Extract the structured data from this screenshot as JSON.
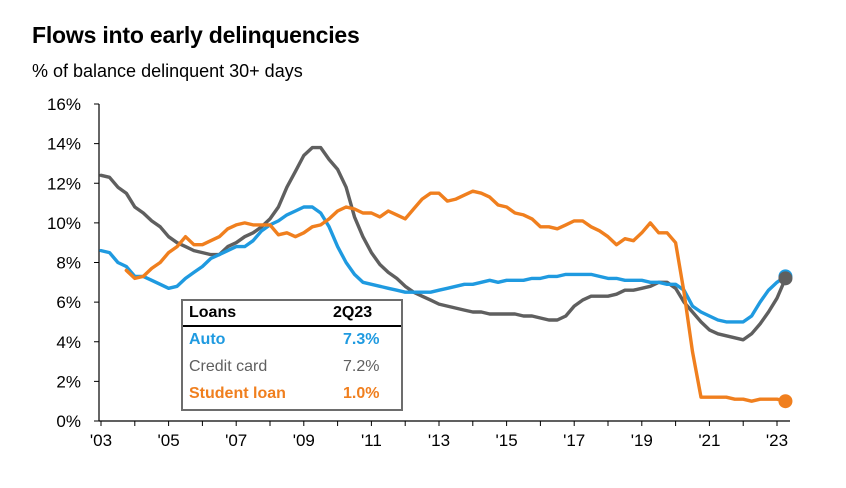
{
  "chart_data": {
    "type": "line",
    "title": "Flows into early delinquencies",
    "subtitle": "% of balance delinquent 30+ days",
    "ylim": [
      0,
      16
    ],
    "xlim": [
      2003.0,
      2023.6
    ],
    "yticks": [
      "0%",
      "2%",
      "4%",
      "6%",
      "8%",
      "10%",
      "12%",
      "14%",
      "16%"
    ],
    "xticks": [
      {
        "x": 2003,
        "label": "'03"
      },
      {
        "x": 2005,
        "label": "'05"
      },
      {
        "x": 2007,
        "label": "'07"
      },
      {
        "x": 2009,
        "label": "'09"
      },
      {
        "x": 2011,
        "label": "'11"
      },
      {
        "x": 2013,
        "label": "'13"
      },
      {
        "x": 2015,
        "label": "'15"
      },
      {
        "x": 2017,
        "label": "'17"
      },
      {
        "x": 2019,
        "label": "'19"
      },
      {
        "x": 2021,
        "label": "'21"
      },
      {
        "x": 2023,
        "label": "'23"
      }
    ],
    "grid": false,
    "series": [
      {
        "name": "Auto",
        "color": "#1f9ae0",
        "points": [
          [
            2003.0,
            8.6
          ],
          [
            2003.25,
            8.5
          ],
          [
            2003.5,
            8.0
          ],
          [
            2003.75,
            7.8
          ],
          [
            2004.0,
            7.3
          ],
          [
            2004.25,
            7.3
          ],
          [
            2004.5,
            7.1
          ],
          [
            2004.75,
            6.9
          ],
          [
            2005.0,
            6.7
          ],
          [
            2005.25,
            6.8
          ],
          [
            2005.5,
            7.2
          ],
          [
            2005.75,
            7.5
          ],
          [
            2006.0,
            7.8
          ],
          [
            2006.25,
            8.2
          ],
          [
            2006.5,
            8.4
          ],
          [
            2006.75,
            8.6
          ],
          [
            2007.0,
            8.8
          ],
          [
            2007.25,
            8.8
          ],
          [
            2007.5,
            9.1
          ],
          [
            2007.75,
            9.6
          ],
          [
            2008.0,
            9.9
          ],
          [
            2008.25,
            10.1
          ],
          [
            2008.5,
            10.4
          ],
          [
            2008.75,
            10.6
          ],
          [
            2009.0,
            10.8
          ],
          [
            2009.25,
            10.8
          ],
          [
            2009.5,
            10.5
          ],
          [
            2009.75,
            9.8
          ],
          [
            2010.0,
            8.8
          ],
          [
            2010.25,
            8.0
          ],
          [
            2010.5,
            7.4
          ],
          [
            2010.75,
            7.0
          ],
          [
            2011.0,
            6.9
          ],
          [
            2011.25,
            6.8
          ],
          [
            2011.5,
            6.7
          ],
          [
            2011.75,
            6.6
          ],
          [
            2012.0,
            6.5
          ],
          [
            2012.25,
            6.5
          ],
          [
            2012.5,
            6.5
          ],
          [
            2012.75,
            6.5
          ],
          [
            2013.0,
            6.6
          ],
          [
            2013.25,
            6.7
          ],
          [
            2013.5,
            6.8
          ],
          [
            2013.75,
            6.9
          ],
          [
            2014.0,
            6.9
          ],
          [
            2014.25,
            7.0
          ],
          [
            2014.5,
            7.1
          ],
          [
            2014.75,
            7.0
          ],
          [
            2015.0,
            7.1
          ],
          [
            2015.25,
            7.1
          ],
          [
            2015.5,
            7.1
          ],
          [
            2015.75,
            7.2
          ],
          [
            2016.0,
            7.2
          ],
          [
            2016.25,
            7.3
          ],
          [
            2016.5,
            7.3
          ],
          [
            2016.75,
            7.4
          ],
          [
            2017.0,
            7.4
          ],
          [
            2017.25,
            7.4
          ],
          [
            2017.5,
            7.4
          ],
          [
            2017.75,
            7.3
          ],
          [
            2018.0,
            7.2
          ],
          [
            2018.25,
            7.2
          ],
          [
            2018.5,
            7.1
          ],
          [
            2018.75,
            7.1
          ],
          [
            2019.0,
            7.1
          ],
          [
            2019.25,
            7.0
          ],
          [
            2019.5,
            7.0
          ],
          [
            2019.75,
            6.9
          ],
          [
            2020.0,
            6.9
          ],
          [
            2020.25,
            6.6
          ],
          [
            2020.5,
            5.8
          ],
          [
            2020.75,
            5.5
          ],
          [
            2021.0,
            5.3
          ],
          [
            2021.25,
            5.1
          ],
          [
            2021.5,
            5.0
          ],
          [
            2021.75,
            5.0
          ],
          [
            2022.0,
            5.0
          ],
          [
            2022.25,
            5.3
          ],
          [
            2022.5,
            6.0
          ],
          [
            2022.75,
            6.6
          ],
          [
            2023.0,
            7.0
          ],
          [
            2023.25,
            7.3
          ]
        ]
      },
      {
        "name": "Credit card",
        "color": "#5f5f5f",
        "points": [
          [
            2003.0,
            12.4
          ],
          [
            2003.25,
            12.3
          ],
          [
            2003.5,
            11.8
          ],
          [
            2003.75,
            11.5
          ],
          [
            2004.0,
            10.8
          ],
          [
            2004.25,
            10.5
          ],
          [
            2004.5,
            10.1
          ],
          [
            2004.75,
            9.8
          ],
          [
            2005.0,
            9.3
          ],
          [
            2005.25,
            9.0
          ],
          [
            2005.5,
            8.8
          ],
          [
            2005.75,
            8.6
          ],
          [
            2006.0,
            8.5
          ],
          [
            2006.25,
            8.4
          ],
          [
            2006.5,
            8.4
          ],
          [
            2006.75,
            8.8
          ],
          [
            2007.0,
            9.0
          ],
          [
            2007.25,
            9.3
          ],
          [
            2007.5,
            9.5
          ],
          [
            2007.75,
            9.8
          ],
          [
            2008.0,
            10.2
          ],
          [
            2008.25,
            10.8
          ],
          [
            2008.5,
            11.8
          ],
          [
            2008.75,
            12.6
          ],
          [
            2009.0,
            13.4
          ],
          [
            2009.25,
            13.8
          ],
          [
            2009.5,
            13.8
          ],
          [
            2009.75,
            13.2
          ],
          [
            2010.0,
            12.7
          ],
          [
            2010.25,
            11.8
          ],
          [
            2010.5,
            10.3
          ],
          [
            2010.75,
            9.3
          ],
          [
            2011.0,
            8.5
          ],
          [
            2011.25,
            7.9
          ],
          [
            2011.5,
            7.5
          ],
          [
            2011.75,
            7.2
          ],
          [
            2012.0,
            6.8
          ],
          [
            2012.25,
            6.5
          ],
          [
            2012.5,
            6.3
          ],
          [
            2012.75,
            6.1
          ],
          [
            2013.0,
            5.9
          ],
          [
            2013.25,
            5.8
          ],
          [
            2013.5,
            5.7
          ],
          [
            2013.75,
            5.6
          ],
          [
            2014.0,
            5.5
          ],
          [
            2014.25,
            5.5
          ],
          [
            2014.5,
            5.4
          ],
          [
            2014.75,
            5.4
          ],
          [
            2015.0,
            5.4
          ],
          [
            2015.25,
            5.4
          ],
          [
            2015.5,
            5.3
          ],
          [
            2015.75,
            5.3
          ],
          [
            2016.0,
            5.2
          ],
          [
            2016.25,
            5.1
          ],
          [
            2016.5,
            5.1
          ],
          [
            2016.75,
            5.3
          ],
          [
            2017.0,
            5.8
          ],
          [
            2017.25,
            6.1
          ],
          [
            2017.5,
            6.3
          ],
          [
            2017.75,
            6.3
          ],
          [
            2018.0,
            6.3
          ],
          [
            2018.25,
            6.4
          ],
          [
            2018.5,
            6.6
          ],
          [
            2018.75,
            6.6
          ],
          [
            2019.0,
            6.7
          ],
          [
            2019.25,
            6.8
          ],
          [
            2019.5,
            7.0
          ],
          [
            2019.75,
            7.0
          ],
          [
            2020.0,
            6.7
          ],
          [
            2020.25,
            6.0
          ],
          [
            2020.5,
            5.5
          ],
          [
            2020.75,
            5.0
          ],
          [
            2021.0,
            4.6
          ],
          [
            2021.25,
            4.4
          ],
          [
            2021.5,
            4.3
          ],
          [
            2021.75,
            4.2
          ],
          [
            2022.0,
            4.1
          ],
          [
            2022.25,
            4.4
          ],
          [
            2022.5,
            4.9
          ],
          [
            2022.75,
            5.5
          ],
          [
            2023.0,
            6.2
          ],
          [
            2023.25,
            7.2
          ]
        ]
      },
      {
        "name": "Student loan",
        "color": "#f07f1e",
        "points": [
          [
            2003.75,
            7.6
          ],
          [
            2004.0,
            7.2
          ],
          [
            2004.25,
            7.3
          ],
          [
            2004.5,
            7.7
          ],
          [
            2004.75,
            8.0
          ],
          [
            2005.0,
            8.5
          ],
          [
            2005.25,
            8.8
          ],
          [
            2005.5,
            9.3
          ],
          [
            2005.75,
            8.9
          ],
          [
            2006.0,
            8.9
          ],
          [
            2006.25,
            9.1
          ],
          [
            2006.5,
            9.3
          ],
          [
            2006.75,
            9.7
          ],
          [
            2007.0,
            9.9
          ],
          [
            2007.25,
            10.0
          ],
          [
            2007.5,
            9.9
          ],
          [
            2007.75,
            9.9
          ],
          [
            2008.0,
            9.9
          ],
          [
            2008.25,
            9.4
          ],
          [
            2008.5,
            9.5
          ],
          [
            2008.75,
            9.3
          ],
          [
            2009.0,
            9.5
          ],
          [
            2009.25,
            9.8
          ],
          [
            2009.5,
            9.9
          ],
          [
            2009.75,
            10.2
          ],
          [
            2010.0,
            10.6
          ],
          [
            2010.25,
            10.8
          ],
          [
            2010.5,
            10.7
          ],
          [
            2010.75,
            10.5
          ],
          [
            2011.0,
            10.5
          ],
          [
            2011.25,
            10.3
          ],
          [
            2011.5,
            10.6
          ],
          [
            2011.75,
            10.4
          ],
          [
            2012.0,
            10.2
          ],
          [
            2012.25,
            10.7
          ],
          [
            2012.5,
            11.2
          ],
          [
            2012.75,
            11.5
          ],
          [
            2013.0,
            11.5
          ],
          [
            2013.25,
            11.1
          ],
          [
            2013.5,
            11.2
          ],
          [
            2013.75,
            11.4
          ],
          [
            2014.0,
            11.6
          ],
          [
            2014.25,
            11.5
          ],
          [
            2014.5,
            11.3
          ],
          [
            2014.75,
            10.9
          ],
          [
            2015.0,
            10.8
          ],
          [
            2015.25,
            10.5
          ],
          [
            2015.5,
            10.4
          ],
          [
            2015.75,
            10.2
          ],
          [
            2016.0,
            9.8
          ],
          [
            2016.25,
            9.8
          ],
          [
            2016.5,
            9.7
          ],
          [
            2016.75,
            9.9
          ],
          [
            2017.0,
            10.1
          ],
          [
            2017.25,
            10.1
          ],
          [
            2017.5,
            9.8
          ],
          [
            2017.75,
            9.6
          ],
          [
            2018.0,
            9.3
          ],
          [
            2018.25,
            8.9
          ],
          [
            2018.5,
            9.2
          ],
          [
            2018.75,
            9.1
          ],
          [
            2019.0,
            9.5
          ],
          [
            2019.25,
            10.0
          ],
          [
            2019.5,
            9.5
          ],
          [
            2019.75,
            9.5
          ],
          [
            2020.0,
            9.0
          ],
          [
            2020.25,
            6.5
          ],
          [
            2020.5,
            3.5
          ],
          [
            2020.75,
            1.2
          ],
          [
            2021.0,
            1.2
          ],
          [
            2021.25,
            1.2
          ],
          [
            2021.5,
            1.2
          ],
          [
            2021.75,
            1.1
          ],
          [
            2022.0,
            1.1
          ],
          [
            2022.25,
            1.0
          ],
          [
            2022.5,
            1.1
          ],
          [
            2022.75,
            1.1
          ],
          [
            2023.0,
            1.1
          ],
          [
            2023.25,
            1.0
          ]
        ]
      }
    ],
    "end_markers": [
      {
        "series": "Auto",
        "x": 2023.25,
        "y": 7.3
      },
      {
        "series": "Credit card",
        "x": 2023.25,
        "y": 7.2
      },
      {
        "series": "Student loan",
        "x": 2023.25,
        "y": 1.0
      }
    ],
    "legend_table": {
      "header": [
        "Loans",
        "2Q23"
      ],
      "rows": [
        {
          "label": "Auto",
          "value": "7.3%",
          "color": "#1f9ae0"
        },
        {
          "label": "Credit card",
          "value": "7.2%",
          "color": "#5f5f5f"
        },
        {
          "label": "Student loan",
          "value": "1.0%",
          "color": "#f07f1e"
        }
      ]
    }
  }
}
